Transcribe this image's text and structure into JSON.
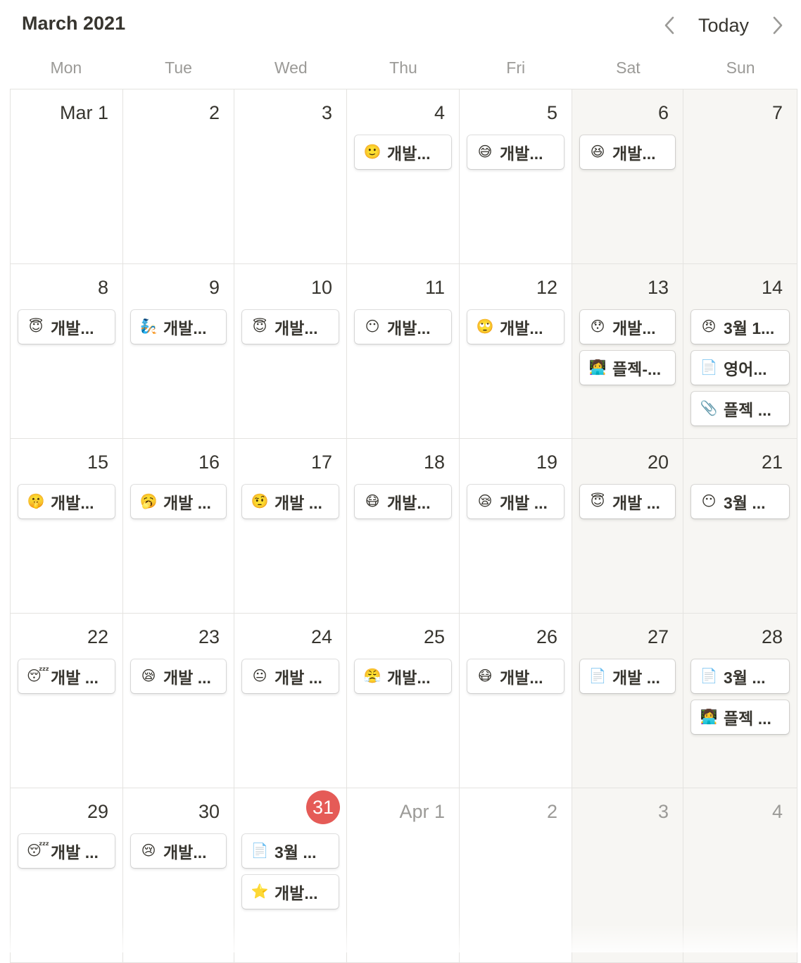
{
  "header": {
    "title": "March 2021",
    "today_label": "Today",
    "prev_icon": "chevron-left-icon",
    "next_icon": "chevron-right-icon"
  },
  "weekdays": [
    "Mon",
    "Tue",
    "Wed",
    "Thu",
    "Fri",
    "Sat",
    "Sun"
  ],
  "colors": {
    "today_badge": "#e55b57",
    "weekend_bg": "#f7f6f3",
    "muted_text": "#9b9a97",
    "text": "#37352f"
  },
  "days": [
    {
      "label": "Mar 1",
      "weekend": false,
      "other": false,
      "today": false,
      "events": []
    },
    {
      "label": "2",
      "weekend": false,
      "other": false,
      "today": false,
      "events": []
    },
    {
      "label": "3",
      "weekend": false,
      "other": false,
      "today": false,
      "events": []
    },
    {
      "label": "4",
      "weekend": false,
      "other": false,
      "today": false,
      "events": [
        {
          "icon": "🙂",
          "title": "개발..."
        }
      ]
    },
    {
      "label": "5",
      "weekend": false,
      "other": false,
      "today": false,
      "events": [
        {
          "icon": "😅",
          "title": "개발..."
        }
      ]
    },
    {
      "label": "6",
      "weekend": true,
      "other": false,
      "today": false,
      "events": [
        {
          "icon": "😆",
          "title": "개발..."
        }
      ]
    },
    {
      "label": "7",
      "weekend": true,
      "other": false,
      "today": false,
      "events": []
    },
    {
      "label": "8",
      "weekend": false,
      "other": false,
      "today": false,
      "events": [
        {
          "icon": "😇",
          "title": "개발..."
        }
      ]
    },
    {
      "label": "9",
      "weekend": false,
      "other": false,
      "today": false,
      "events": [
        {
          "icon": "🧞",
          "title": "개발..."
        }
      ]
    },
    {
      "label": "10",
      "weekend": false,
      "other": false,
      "today": false,
      "events": [
        {
          "icon": "😇",
          "title": "개발..."
        }
      ]
    },
    {
      "label": "11",
      "weekend": false,
      "other": false,
      "today": false,
      "events": [
        {
          "icon": "😶",
          "title": "개발..."
        }
      ]
    },
    {
      "label": "12",
      "weekend": false,
      "other": false,
      "today": false,
      "events": [
        {
          "icon": "🙄",
          "title": "개발..."
        }
      ]
    },
    {
      "label": "13",
      "weekend": true,
      "other": false,
      "today": false,
      "events": [
        {
          "icon": "😯",
          "title": "개발..."
        },
        {
          "icon": "👩‍💻",
          "title": "플젝-..."
        }
      ]
    },
    {
      "label": "14",
      "weekend": true,
      "other": false,
      "today": false,
      "events": [
        {
          "icon": "😠",
          "title": "3월 1..."
        },
        {
          "icon": "📄",
          "title": "영어..."
        },
        {
          "icon": "📎",
          "title": "플젝 ..."
        }
      ]
    },
    {
      "label": "15",
      "weekend": false,
      "other": false,
      "today": false,
      "events": [
        {
          "icon": "🤫",
          "title": "개발..."
        }
      ]
    },
    {
      "label": "16",
      "weekend": false,
      "other": false,
      "today": false,
      "events": [
        {
          "icon": "🥱",
          "title": "개발 ..."
        }
      ]
    },
    {
      "label": "17",
      "weekend": false,
      "other": false,
      "today": false,
      "events": [
        {
          "icon": "🤨",
          "title": "개발 ..."
        }
      ]
    },
    {
      "label": "18",
      "weekend": false,
      "other": false,
      "today": false,
      "events": [
        {
          "icon": "😷",
          "title": "개발..."
        }
      ]
    },
    {
      "label": "19",
      "weekend": false,
      "other": false,
      "today": false,
      "events": [
        {
          "icon": "😪",
          "title": "개발 ..."
        }
      ]
    },
    {
      "label": "20",
      "weekend": true,
      "other": false,
      "today": false,
      "events": [
        {
          "icon": "😇",
          "title": "개발 ..."
        }
      ]
    },
    {
      "label": "21",
      "weekend": true,
      "other": false,
      "today": false,
      "events": [
        {
          "icon": "😶",
          "title": "3월 ..."
        }
      ]
    },
    {
      "label": "22",
      "weekend": false,
      "other": false,
      "today": false,
      "events": [
        {
          "icon": "😴",
          "title": "개발 ..."
        }
      ]
    },
    {
      "label": "23",
      "weekend": false,
      "other": false,
      "today": false,
      "events": [
        {
          "icon": "😪",
          "title": "개발 ..."
        }
      ]
    },
    {
      "label": "24",
      "weekend": false,
      "other": false,
      "today": false,
      "events": [
        {
          "icon": "😐",
          "title": "개발 ..."
        }
      ]
    },
    {
      "label": "25",
      "weekend": false,
      "other": false,
      "today": false,
      "events": [
        {
          "icon": "😤",
          "title": "개발..."
        }
      ]
    },
    {
      "label": "26",
      "weekend": false,
      "other": false,
      "today": false,
      "events": [
        {
          "icon": "😷",
          "title": "개발..."
        }
      ]
    },
    {
      "label": "27",
      "weekend": true,
      "other": false,
      "today": false,
      "events": [
        {
          "icon": "📄",
          "title": "개발 ..."
        }
      ]
    },
    {
      "label": "28",
      "weekend": true,
      "other": false,
      "today": false,
      "events": [
        {
          "icon": "📄",
          "title": "3월 ..."
        },
        {
          "icon": "👩‍💻",
          "title": "플젝 ..."
        }
      ]
    },
    {
      "label": "29",
      "weekend": false,
      "other": false,
      "today": false,
      "events": [
        {
          "icon": "😴",
          "title": "개발 ..."
        }
      ]
    },
    {
      "label": "30",
      "weekend": false,
      "other": false,
      "today": false,
      "events": [
        {
          "icon": "😢",
          "title": "개발..."
        }
      ]
    },
    {
      "label": "31",
      "weekend": false,
      "other": false,
      "today": true,
      "events": [
        {
          "icon": "📄",
          "title": "3월 ..."
        },
        {
          "icon": "⭐",
          "title": "개발..."
        }
      ]
    },
    {
      "label": "Apr 1",
      "weekend": false,
      "other": true,
      "today": false,
      "events": []
    },
    {
      "label": "2",
      "weekend": false,
      "other": true,
      "today": false,
      "events": []
    },
    {
      "label": "3",
      "weekend": true,
      "other": true,
      "today": false,
      "events": []
    },
    {
      "label": "4",
      "weekend": true,
      "other": true,
      "today": false,
      "events": []
    }
  ]
}
